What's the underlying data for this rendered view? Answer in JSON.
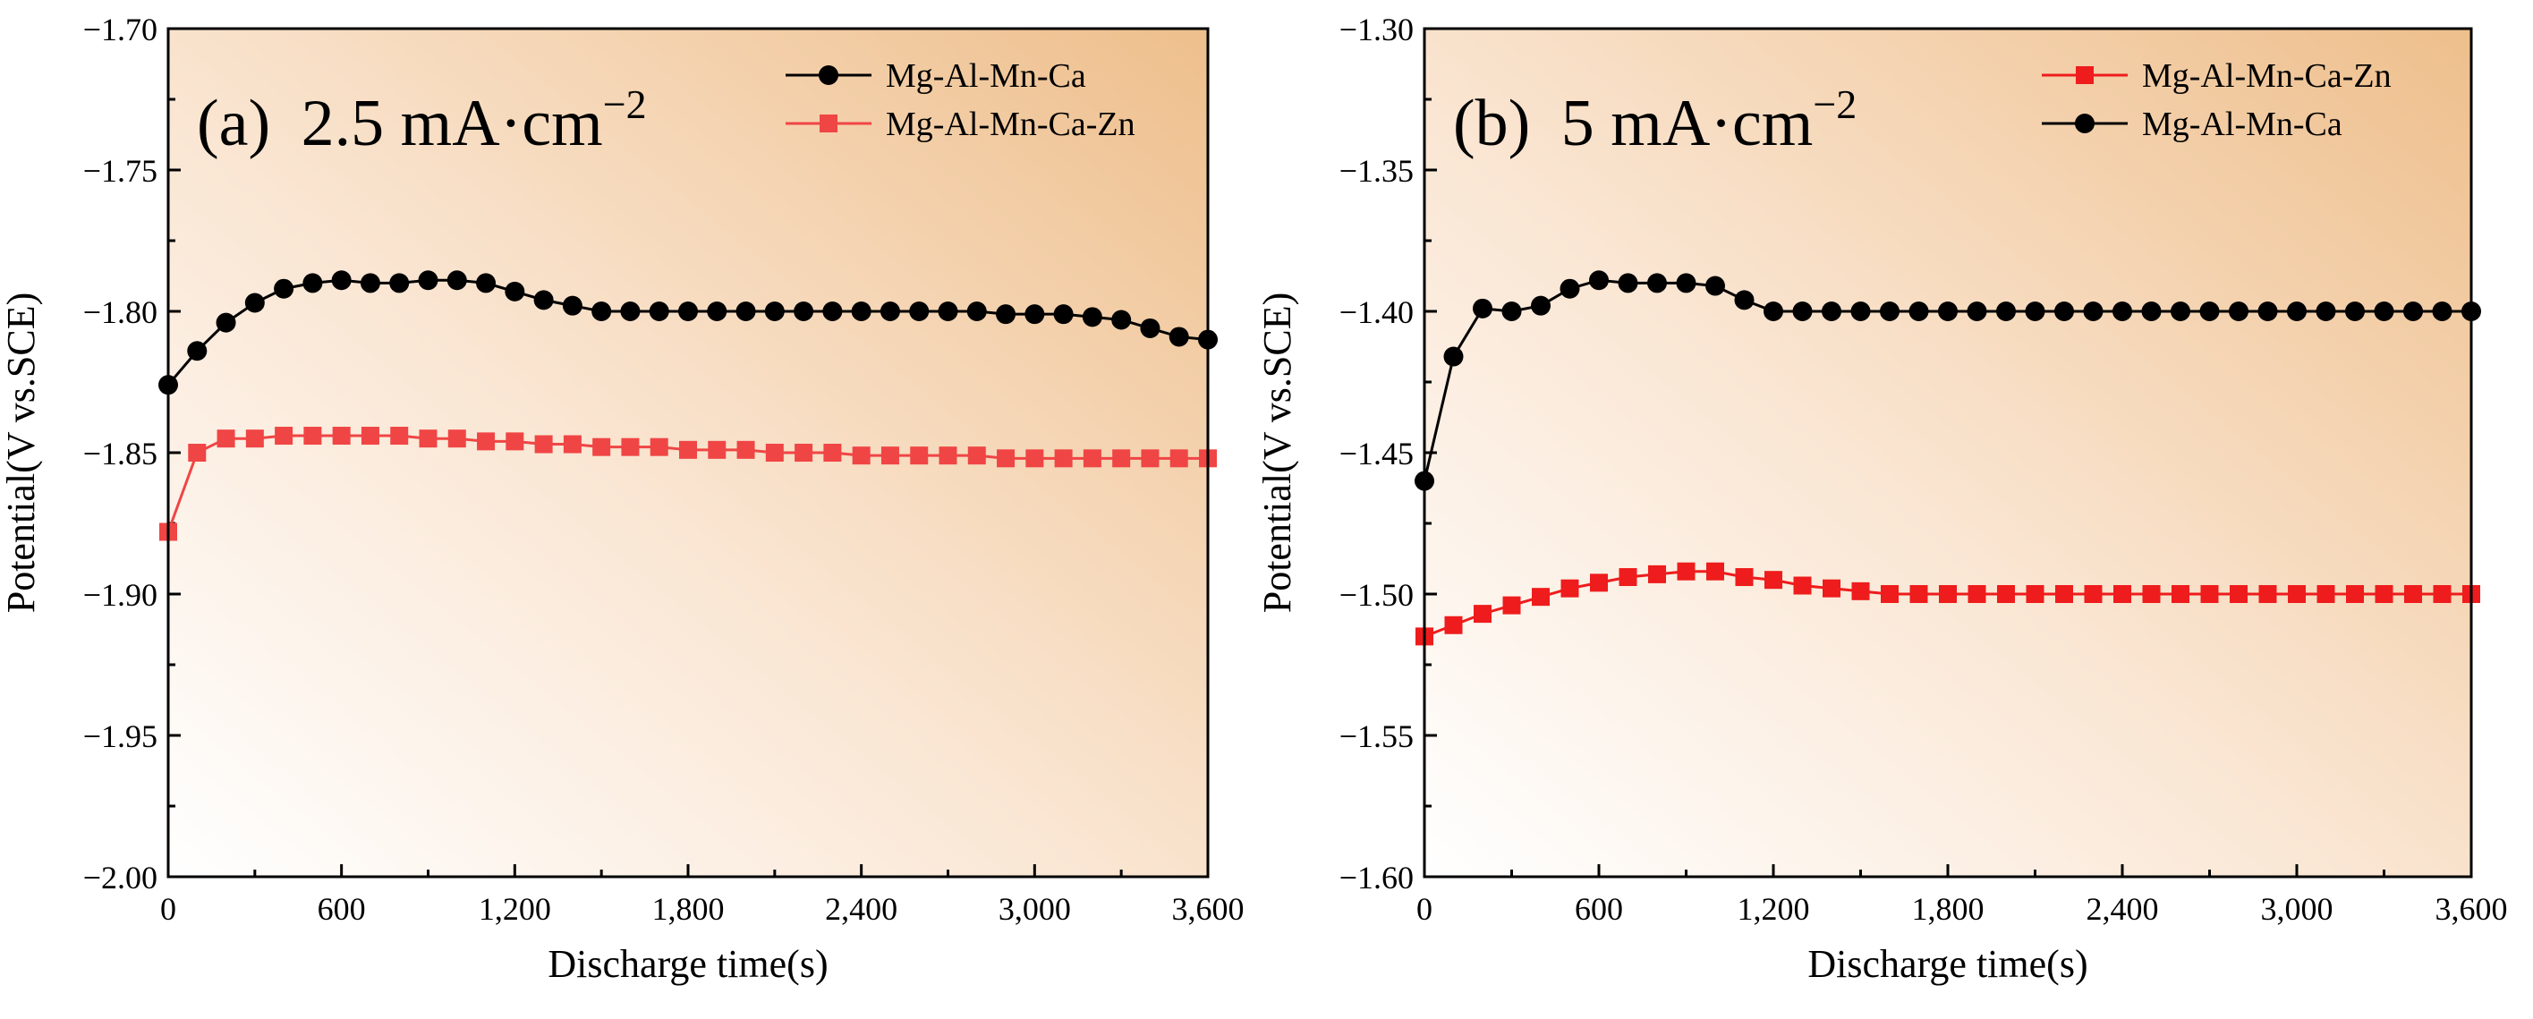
{
  "chart_data": [
    {
      "type": "line",
      "panel_label": "(a)",
      "title": "2.5 mA·cm",
      "title_superscript": "−2",
      "xlabel": "Discharge time(s)",
      "ylabel": "Potential(V vs.SCE)",
      "xlim": [
        0,
        3600
      ],
      "ylim": [
        -2.0,
        -1.7
      ],
      "xticks": [
        "0",
        "600",
        "1,200",
        "1,800",
        "2,400",
        "3,000",
        "3,600"
      ],
      "xtick_values": [
        0,
        600,
        1200,
        1800,
        2400,
        3000,
        3600
      ],
      "yticks": [
        "−2.00",
        "−1.95",
        "−1.90",
        "−1.85",
        "−1.80",
        "−1.75",
        "−1.70"
      ],
      "ytick_values": [
        -2.0,
        -1.95,
        -1.9,
        -1.85,
        -1.8,
        -1.75,
        -1.7
      ],
      "legend_position": "top-right",
      "x": [
        0,
        100,
        200,
        300,
        400,
        500,
        600,
        700,
        800,
        900,
        1000,
        1100,
        1200,
        1300,
        1400,
        1500,
        1600,
        1700,
        1800,
        1900,
        2000,
        2100,
        2200,
        2300,
        2400,
        2500,
        2600,
        2700,
        2800,
        2900,
        3000,
        3100,
        3200,
        3300,
        3400,
        3500,
        3600
      ],
      "series": [
        {
          "name": "Mg-Al-Mn-Ca",
          "color": "#000000",
          "marker": "circle",
          "values": [
            -1.826,
            -1.814,
            -1.804,
            -1.797,
            -1.792,
            -1.79,
            -1.789,
            -1.79,
            -1.79,
            -1.789,
            -1.789,
            -1.79,
            -1.793,
            -1.796,
            -1.798,
            -1.8,
            -1.8,
            -1.8,
            -1.8,
            -1.8,
            -1.8,
            -1.8,
            -1.8,
            -1.8,
            -1.8,
            -1.8,
            -1.8,
            -1.8,
            -1.8,
            -1.801,
            -1.801,
            -1.801,
            -1.802,
            -1.803,
            -1.806,
            -1.809,
            -1.81
          ]
        },
        {
          "name": "Mg-Al-Mn-Ca-Zn",
          "color": "#f04545",
          "marker": "square",
          "values": [
            -1.878,
            -1.85,
            -1.845,
            -1.845,
            -1.844,
            -1.844,
            -1.844,
            -1.844,
            -1.844,
            -1.845,
            -1.845,
            -1.846,
            -1.846,
            -1.847,
            -1.847,
            -1.848,
            -1.848,
            -1.848,
            -1.849,
            -1.849,
            -1.849,
            -1.85,
            -1.85,
            -1.85,
            -1.851,
            -1.851,
            -1.851,
            -1.851,
            -1.851,
            -1.852,
            -1.852,
            -1.852,
            -1.852,
            -1.852,
            -1.852,
            -1.852,
            -1.852
          ]
        }
      ]
    },
    {
      "type": "line",
      "panel_label": "(b)",
      "title": "5 mA·cm",
      "title_superscript": "−2",
      "xlabel": "Discharge time(s)",
      "ylabel": "Potential(V vs.SCE)",
      "xlim": [
        0,
        3600
      ],
      "ylim": [
        -1.6,
        -1.3
      ],
      "xticks": [
        "0",
        "600",
        "1,200",
        "1,800",
        "2,400",
        "3,000",
        "3,600"
      ],
      "xtick_values": [
        0,
        600,
        1200,
        1800,
        2400,
        3000,
        3600
      ],
      "yticks": [
        "−1.60",
        "−1.55",
        "−1.50",
        "−1.45",
        "−1.40",
        "−1.35",
        "−1.30"
      ],
      "ytick_values": [
        -1.6,
        -1.55,
        -1.5,
        -1.45,
        -1.4,
        -1.35,
        -1.3
      ],
      "legend_position": "top-right",
      "x": [
        0,
        100,
        200,
        300,
        400,
        500,
        600,
        700,
        800,
        900,
        1000,
        1100,
        1200,
        1300,
        1400,
        1500,
        1600,
        1700,
        1800,
        1900,
        2000,
        2100,
        2200,
        2300,
        2400,
        2500,
        2600,
        2700,
        2800,
        2900,
        3000,
        3100,
        3200,
        3300,
        3400,
        3500,
        3600
      ],
      "series": [
        {
          "name": "Mg-Al-Mn-Ca-Zn",
          "color": "#ee1c1c",
          "marker": "square",
          "values": [
            -1.515,
            -1.511,
            -1.507,
            -1.504,
            -1.501,
            -1.498,
            -1.496,
            -1.494,
            -1.493,
            -1.492,
            -1.492,
            -1.494,
            -1.495,
            -1.497,
            -1.498,
            -1.499,
            -1.5,
            -1.5,
            -1.5,
            -1.5,
            -1.5,
            -1.5,
            -1.5,
            -1.5,
            -1.5,
            -1.5,
            -1.5,
            -1.5,
            -1.5,
            -1.5,
            -1.5,
            -1.5,
            -1.5,
            -1.5,
            -1.5,
            -1.5,
            -1.5
          ]
        },
        {
          "name": "Mg-Al-Mn-Ca",
          "color": "#000000",
          "marker": "circle",
          "values": [
            -1.46,
            -1.416,
            -1.399,
            -1.4,
            -1.398,
            -1.392,
            -1.389,
            -1.39,
            -1.39,
            -1.39,
            -1.391,
            -1.396,
            -1.4,
            -1.4,
            -1.4,
            -1.4,
            -1.4,
            -1.4,
            -1.4,
            -1.4,
            -1.4,
            -1.4,
            -1.4,
            -1.4,
            -1.4,
            -1.4,
            -1.4,
            -1.4,
            -1.4,
            -1.4,
            -1.4,
            -1.4,
            -1.4,
            -1.4,
            -1.4,
            -1.4,
            -1.4
          ]
        }
      ]
    }
  ]
}
